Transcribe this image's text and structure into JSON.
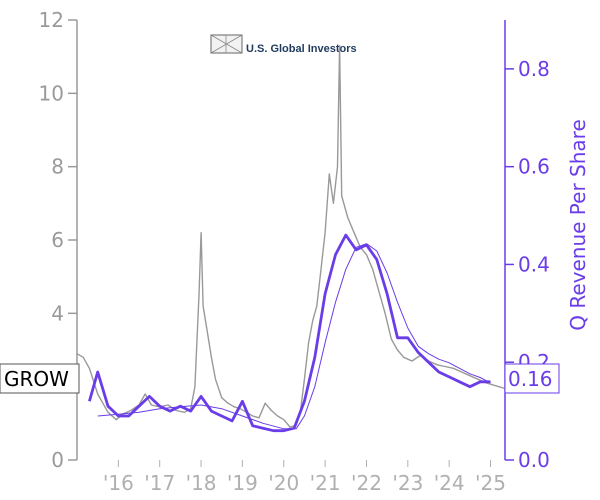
{
  "chart_data": {
    "type": "line",
    "brand": "U.S. Global Investors",
    "ticker": "GROW",
    "ylabel_right": "Q Revenue Per Share",
    "x_ticks": [
      "'16",
      "'17",
      "'18",
      "'19",
      "'20",
      "'21",
      "'22",
      "'23",
      "'24",
      "'25"
    ],
    "x_tick_years": [
      2016,
      2017,
      2018,
      2019,
      2020,
      2021,
      2022,
      2023,
      2024,
      2025
    ],
    "xlim": [
      2015.0,
      2025.35
    ],
    "y_left": {
      "ticks": [
        "0",
        "2",
        "4",
        "6",
        "8",
        "10",
        "12"
      ],
      "tick_values": [
        0,
        2,
        4,
        6,
        8,
        10,
        12
      ],
      "lim": [
        0,
        12
      ]
    },
    "y_right": {
      "ticks": [
        "0.0",
        "0.2",
        "0.4",
        "0.6",
        "0.8"
      ],
      "tick_values": [
        0.0,
        0.2,
        0.4,
        0.6,
        0.8
      ],
      "lim": [
        0,
        0.9
      ]
    },
    "last_price_label": "0.16",
    "last_price_value": 0.16,
    "colors": {
      "price": "#999999",
      "revenue": "#6a3de8",
      "left_axis": "#9a9a9a",
      "right_axis": "#6a3de8"
    },
    "series": [
      {
        "axis": "left",
        "points": [
          [
            2015.0,
            2.9
          ],
          [
            2015.15,
            2.8
          ],
          [
            2015.3,
            2.5
          ],
          [
            2015.5,
            1.8
          ],
          [
            2015.75,
            1.3
          ],
          [
            2015.95,
            1.1
          ],
          [
            2016.1,
            1.25
          ],
          [
            2016.3,
            1.35
          ],
          [
            2016.5,
            1.5
          ],
          [
            2016.65,
            1.8
          ],
          [
            2016.8,
            1.5
          ],
          [
            2017.0,
            1.45
          ],
          [
            2017.2,
            1.5
          ],
          [
            2017.4,
            1.35
          ],
          [
            2017.6,
            1.3
          ],
          [
            2017.75,
            1.4
          ],
          [
            2017.85,
            2.0
          ],
          [
            2017.95,
            4.5
          ],
          [
            2018.0,
            6.2
          ],
          [
            2018.05,
            4.2
          ],
          [
            2018.15,
            3.5
          ],
          [
            2018.25,
            2.8
          ],
          [
            2018.35,
            2.2
          ],
          [
            2018.5,
            1.7
          ],
          [
            2018.65,
            1.55
          ],
          [
            2018.8,
            1.45
          ],
          [
            2018.95,
            1.4
          ],
          [
            2019.1,
            1.3
          ],
          [
            2019.25,
            1.2
          ],
          [
            2019.4,
            1.15
          ],
          [
            2019.55,
            1.55
          ],
          [
            2019.7,
            1.35
          ],
          [
            2019.85,
            1.2
          ],
          [
            2020.0,
            1.1
          ],
          [
            2020.15,
            0.9
          ],
          [
            2020.3,
            0.95
          ],
          [
            2020.4,
            1.3
          ],
          [
            2020.5,
            2.2
          ],
          [
            2020.6,
            3.2
          ],
          [
            2020.7,
            3.8
          ],
          [
            2020.8,
            4.2
          ],
          [
            2020.9,
            5.2
          ],
          [
            2021.0,
            6.2
          ],
          [
            2021.1,
            7.8
          ],
          [
            2021.2,
            7.0
          ],
          [
            2021.3,
            8.0
          ],
          [
            2021.35,
            11.3
          ],
          [
            2021.4,
            7.2
          ],
          [
            2021.55,
            6.6
          ],
          [
            2021.7,
            6.2
          ],
          [
            2021.85,
            5.8
          ],
          [
            2022.0,
            5.6
          ],
          [
            2022.15,
            5.2
          ],
          [
            2022.3,
            4.6
          ],
          [
            2022.45,
            4.0
          ],
          [
            2022.6,
            3.3
          ],
          [
            2022.75,
            3.0
          ],
          [
            2022.9,
            2.8
          ],
          [
            2023.1,
            2.7
          ],
          [
            2023.3,
            2.85
          ],
          [
            2023.5,
            2.7
          ],
          [
            2023.7,
            2.6
          ],
          [
            2023.9,
            2.55
          ],
          [
            2024.1,
            2.5
          ],
          [
            2024.3,
            2.4
          ],
          [
            2024.5,
            2.3
          ],
          [
            2024.7,
            2.2
          ],
          [
            2024.9,
            2.1
          ],
          [
            2025.05,
            2.05
          ],
          [
            2025.2,
            2.0
          ],
          [
            2025.35,
            1.95
          ]
        ]
      },
      {
        "axis": "right",
        "points": [
          [
            2015.3,
            0.12
          ],
          [
            2015.5,
            0.18
          ],
          [
            2015.75,
            0.11
          ],
          [
            2016.0,
            0.09
          ],
          [
            2016.25,
            0.09
          ],
          [
            2016.5,
            0.11
          ],
          [
            2016.75,
            0.13
          ],
          [
            2017.0,
            0.11
          ],
          [
            2017.25,
            0.1
          ],
          [
            2017.5,
            0.11
          ],
          [
            2017.75,
            0.1
          ],
          [
            2018.0,
            0.13
          ],
          [
            2018.25,
            0.1
          ],
          [
            2018.5,
            0.09
          ],
          [
            2018.75,
            0.08
          ],
          [
            2019.0,
            0.12
          ],
          [
            2019.25,
            0.07
          ],
          [
            2019.5,
            0.065
          ],
          [
            2019.75,
            0.06
          ],
          [
            2020.0,
            0.06
          ],
          [
            2020.25,
            0.065
          ],
          [
            2020.5,
            0.12
          ],
          [
            2020.75,
            0.21
          ],
          [
            2021.0,
            0.34
          ],
          [
            2021.25,
            0.42
          ],
          [
            2021.5,
            0.46
          ],
          [
            2021.75,
            0.43
          ],
          [
            2022.0,
            0.44
          ],
          [
            2022.25,
            0.41
          ],
          [
            2022.5,
            0.34
          ],
          [
            2022.75,
            0.25
          ],
          [
            2023.0,
            0.25
          ],
          [
            2023.25,
            0.22
          ],
          [
            2023.5,
            0.2
          ],
          [
            2023.75,
            0.18
          ],
          [
            2024.0,
            0.17
          ],
          [
            2024.25,
            0.16
          ],
          [
            2024.5,
            0.15
          ],
          [
            2024.75,
            0.16
          ],
          [
            2025.0,
            0.16
          ]
        ]
      },
      {
        "axis": "left",
        "points": [
          [
            2015.5,
            1.2
          ],
          [
            2016.0,
            1.25
          ],
          [
            2016.5,
            1.3
          ],
          [
            2017.0,
            1.4
          ],
          [
            2017.5,
            1.45
          ],
          [
            2018.0,
            1.5
          ],
          [
            2018.5,
            1.4
          ],
          [
            2019.0,
            1.2
          ],
          [
            2019.5,
            1.0
          ],
          [
            2020.0,
            0.85
          ],
          [
            2020.3,
            0.85
          ],
          [
            2020.5,
            1.2
          ],
          [
            2020.75,
            2.0
          ],
          [
            2021.0,
            3.2
          ],
          [
            2021.25,
            4.3
          ],
          [
            2021.5,
            5.2
          ],
          [
            2021.75,
            5.8
          ],
          [
            2022.0,
            5.9
          ],
          [
            2022.25,
            5.7
          ],
          [
            2022.5,
            5.1
          ],
          [
            2022.75,
            4.3
          ],
          [
            2023.0,
            3.6
          ],
          [
            2023.25,
            3.1
          ],
          [
            2023.5,
            2.9
          ],
          [
            2023.75,
            2.75
          ],
          [
            2024.0,
            2.65
          ],
          [
            2024.25,
            2.5
          ],
          [
            2024.5,
            2.35
          ],
          [
            2024.75,
            2.25
          ],
          [
            2025.0,
            2.1
          ]
        ]
      }
    ]
  }
}
